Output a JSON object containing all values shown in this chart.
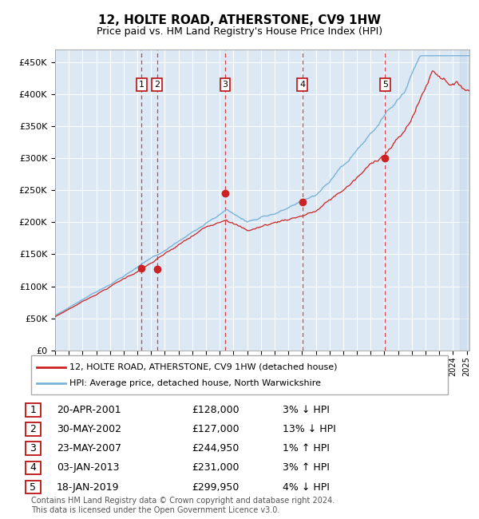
{
  "title": "12, HOLTE ROAD, ATHERSTONE, CV9 1HW",
  "subtitle": "Price paid vs. HM Land Registry's House Price Index (HPI)",
  "ytick_values": [
    0,
    50000,
    100000,
    150000,
    200000,
    250000,
    300000,
    350000,
    400000,
    450000
  ],
  "ylim": [
    0,
    470000
  ],
  "xlim_start": 1995.0,
  "xlim_end": 2025.2,
  "background_color": "#dce9f5",
  "hpi_color": "#7ab3d8",
  "price_color": "#cc2222",
  "dashed_line_color": "#cc2222",
  "transactions": [
    {
      "num": 1,
      "date": "20-APR-2001",
      "price": 128000,
      "hpi_diff": "3% ↓ HPI",
      "year": 2001.3
    },
    {
      "num": 2,
      "date": "30-MAY-2002",
      "price": 127000,
      "hpi_diff": "13% ↓ HPI",
      "year": 2002.42
    },
    {
      "num": 3,
      "date": "23-MAY-2007",
      "price": 244950,
      "hpi_diff": "1% ↑ HPI",
      "year": 2007.4
    },
    {
      "num": 4,
      "date": "03-JAN-2013",
      "price": 231000,
      "hpi_diff": "3% ↑ HPI",
      "year": 2013.02
    },
    {
      "num": 5,
      "date": "18-JAN-2019",
      "price": 299950,
      "hpi_diff": "4% ↓ HPI",
      "year": 2019.05
    }
  ],
  "legend_label_price": "12, HOLTE ROAD, ATHERSTONE, CV9 1HW (detached house)",
  "legend_label_hpi": "HPI: Average price, detached house, North Warwickshire",
  "footer": "Contains HM Land Registry data © Crown copyright and database right 2024.\nThis data is licensed under the Open Government Licence v3.0."
}
